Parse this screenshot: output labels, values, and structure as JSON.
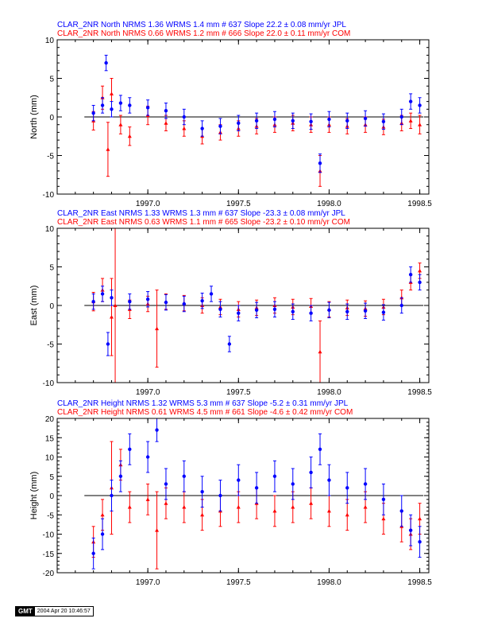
{
  "chart_data": [
    {
      "type": "scatter",
      "panel": "north",
      "title_lines": [
        {
          "text": "CLAR_2NR North NRMS 1.36 WRMS  1.4 mm # 637 Slope   22.2 ±  0.08 mm/yr JPL",
          "color": "#0000ff"
        },
        {
          "text": "CLAR_2NR North NRMS 0.66 WRMS  1.2 mm # 666 Slope   22.0 ±  0.11 mm/yr COM",
          "color": "#ff0000"
        }
      ],
      "ylabel": "North (mm)",
      "xlim": [
        1996.5,
        1998.55
      ],
      "ylim": [
        -10,
        10
      ],
      "xticks": [
        1997.0,
        1997.5,
        1998.0,
        1998.5
      ],
      "xtick_labels": [
        "1997.0",
        "1997.5",
        "1998.0",
        "1998.5"
      ],
      "yticks": [
        -10,
        -5,
        0,
        5,
        10
      ],
      "ytick_labels": [
        "-10",
        "-5",
        "0",
        "5",
        "10"
      ],
      "zero_line": true,
      "series": [
        {
          "color": "#ff0000",
          "points": [
            [
              1996.7,
              -0.5,
              1.2
            ],
            [
              1996.75,
              2.5,
              1.5
            ],
            [
              1996.78,
              -4.2,
              3.5
            ],
            [
              1996.8,
              3.0,
              2.0
            ],
            [
              1996.85,
              -1.0,
              1.2
            ],
            [
              1996.9,
              -2.5,
              1.2
            ],
            [
              1997.0,
              0.2,
              1.2
            ],
            [
              1997.1,
              -0.8,
              1.0
            ],
            [
              1997.2,
              -1.5,
              1.0
            ],
            [
              1997.3,
              -2.5,
              1.0
            ],
            [
              1997.4,
              -2.0,
              1.0
            ],
            [
              1997.5,
              -1.5,
              1.0
            ],
            [
              1997.6,
              -1.2,
              1.0
            ],
            [
              1997.7,
              -1.0,
              1.0
            ],
            [
              1997.8,
              -0.8,
              1.0
            ],
            [
              1997.9,
              -1.0,
              1.0
            ],
            [
              1997.95,
              -7.0,
              2.0
            ],
            [
              1998.0,
              -1.0,
              1.0
            ],
            [
              1998.1,
              -1.2,
              1.0
            ],
            [
              1998.2,
              -1.0,
              1.0
            ],
            [
              1998.3,
              -1.3,
              1.0
            ],
            [
              1998.4,
              -0.8,
              1.0
            ],
            [
              1998.45,
              -0.5,
              1.0
            ],
            [
              1998.5,
              -1.0,
              1.2
            ]
          ]
        },
        {
          "color": "#0000ff",
          "points": [
            [
              1996.7,
              0.5,
              1.0
            ],
            [
              1996.75,
              1.5,
              1.0
            ],
            [
              1996.77,
              7.0,
              1.0
            ],
            [
              1996.8,
              1.0,
              1.0
            ],
            [
              1996.85,
              1.8,
              1.0
            ],
            [
              1996.9,
              1.5,
              1.0
            ],
            [
              1997.0,
              1.2,
              1.0
            ],
            [
              1997.1,
              0.8,
              1.0
            ],
            [
              1997.2,
              0.0,
              1.0
            ],
            [
              1997.3,
              -1.5,
              1.0
            ],
            [
              1997.4,
              -1.2,
              1.0
            ],
            [
              1997.5,
              -0.8,
              1.0
            ],
            [
              1997.6,
              -0.5,
              1.0
            ],
            [
              1997.7,
              -0.3,
              1.0
            ],
            [
              1997.8,
              -0.5,
              1.0
            ],
            [
              1997.9,
              -0.6,
              1.0
            ],
            [
              1997.95,
              -6.0,
              1.2
            ],
            [
              1998.0,
              -0.3,
              1.0
            ],
            [
              1998.1,
              -0.5,
              1.0
            ],
            [
              1998.2,
              -0.2,
              1.0
            ],
            [
              1998.3,
              -0.6,
              1.0
            ],
            [
              1998.4,
              0.0,
              1.0
            ],
            [
              1998.45,
              2.0,
              1.0
            ],
            [
              1998.5,
              1.5,
              1.0
            ]
          ]
        }
      ]
    },
    {
      "type": "scatter",
      "panel": "east",
      "title_lines": [
        {
          "text": "CLAR_2NR East NRMS 1.33 WRMS  1.3 mm # 637 Slope  -23.3 ±  0.08 mm/yr JPL",
          "color": "#0000ff"
        },
        {
          "text": "CLAR_2NR East NRMS 0.63 WRMS  1.1 mm # 665 Slope  -23.2 ±  0.10 mm/yr COM",
          "color": "#ff0000"
        }
      ],
      "ylabel": "East (mm)",
      "xlim": [
        1996.5,
        1998.55
      ],
      "ylim": [
        -10,
        10
      ],
      "xticks": [
        1997.0,
        1997.5,
        1998.0,
        1998.5
      ],
      "xtick_labels": [
        "1997.0",
        "1997.5",
        "1998.0",
        "1998.5"
      ],
      "yticks": [
        -10,
        -5,
        0,
        5,
        10
      ],
      "ytick_labels": [
        "-10",
        "-5",
        "0",
        "5",
        "10"
      ],
      "zero_line": true,
      "series": [
        {
          "color": "#ff0000",
          "points": [
            [
              1996.7,
              0.5,
              1.2
            ],
            [
              1996.75,
              2.0,
              1.5
            ],
            [
              1996.8,
              -1.5,
              5.0
            ],
            [
              1996.82,
              0.0,
              10.0
            ],
            [
              1996.9,
              -0.5,
              1.2
            ],
            [
              1997.0,
              0.2,
              1.0
            ],
            [
              1997.05,
              -3.0,
              5.0
            ],
            [
              1997.1,
              0.5,
              1.0
            ],
            [
              1997.2,
              0.3,
              1.0
            ],
            [
              1997.3,
              0.0,
              1.0
            ],
            [
              1997.4,
              -0.2,
              1.0
            ],
            [
              1997.5,
              -0.5,
              1.0
            ],
            [
              1997.6,
              -0.3,
              1.0
            ],
            [
              1997.7,
              0.0,
              1.0
            ],
            [
              1997.8,
              -0.2,
              1.0
            ],
            [
              1997.9,
              -0.1,
              1.0
            ],
            [
              1997.95,
              -6.0,
              4.0
            ],
            [
              1998.0,
              -0.5,
              1.0
            ],
            [
              1998.1,
              -0.3,
              1.0
            ],
            [
              1998.2,
              -0.4,
              1.0
            ],
            [
              1998.3,
              -0.2,
              1.0
            ],
            [
              1998.4,
              1.0,
              1.0
            ],
            [
              1998.45,
              3.0,
              1.0
            ],
            [
              1998.5,
              4.5,
              1.0
            ]
          ]
        },
        {
          "color": "#0000ff",
          "points": [
            [
              1996.7,
              0.5,
              1.0
            ],
            [
              1996.75,
              1.5,
              1.0
            ],
            [
              1996.78,
              -5.0,
              1.5
            ],
            [
              1996.8,
              1.0,
              1.0
            ],
            [
              1996.9,
              0.5,
              1.0
            ],
            [
              1997.0,
              0.8,
              1.0
            ],
            [
              1997.1,
              0.4,
              1.0
            ],
            [
              1997.2,
              0.2,
              1.0
            ],
            [
              1997.3,
              0.6,
              1.0
            ],
            [
              1997.35,
              1.5,
              1.0
            ],
            [
              1997.4,
              -0.5,
              1.0
            ],
            [
              1997.45,
              -5.0,
              1.0
            ],
            [
              1997.5,
              -1.0,
              1.0
            ],
            [
              1997.6,
              -0.6,
              1.0
            ],
            [
              1997.7,
              -0.5,
              1.0
            ],
            [
              1997.8,
              -0.8,
              1.0
            ],
            [
              1997.9,
              -1.0,
              1.0
            ],
            [
              1998.0,
              -0.6,
              1.0
            ],
            [
              1998.1,
              -0.8,
              1.0
            ],
            [
              1998.2,
              -0.7,
              1.0
            ],
            [
              1998.3,
              -0.9,
              1.0
            ],
            [
              1998.4,
              0.0,
              1.0
            ],
            [
              1998.45,
              4.0,
              1.0
            ],
            [
              1998.5,
              3.0,
              1.0
            ]
          ]
        }
      ]
    },
    {
      "type": "scatter",
      "panel": "height",
      "title_lines": [
        {
          "text": "CLAR_2NR Height NRMS 1.32 WRMS  5.3 mm # 637 Slope   -5.2 ±  0.31 mm/yr JPL",
          "color": "#0000ff"
        },
        {
          "text": "CLAR_2NR Height NRMS 0.61 WRMS  4.5 mm # 661 Slope   -4.6 ±  0.42 mm/yr COM",
          "color": "#ff0000"
        }
      ],
      "ylabel": "Height (mm)",
      "xlim": [
        1996.5,
        1998.55
      ],
      "ylim": [
        -20,
        20
      ],
      "xticks": [
        1997.0,
        1997.5,
        1998.0,
        1998.5
      ],
      "xtick_labels": [
        "1997.0",
        "1997.5",
        "1998.0",
        "1998.5"
      ],
      "yticks": [
        -20,
        -15,
        -10,
        -5,
        0,
        5,
        10,
        15,
        20
      ],
      "ytick_labels": [
        "-20",
        "-15",
        "-10",
        "-5",
        "0",
        "5",
        "10",
        "15",
        "20"
      ],
      "zero_line": true,
      "series": [
        {
          "color": "#ff0000",
          "points": [
            [
              1996.7,
              -12.0,
              4.0
            ],
            [
              1996.75,
              -5.0,
              4.0
            ],
            [
              1996.8,
              2.0,
              12.0
            ],
            [
              1996.85,
              8.0,
              4.0
            ],
            [
              1996.9,
              -3.0,
              4.0
            ],
            [
              1997.0,
              -1.0,
              4.0
            ],
            [
              1997.05,
              -9.0,
              10.0
            ],
            [
              1997.1,
              -2.0,
              4.0
            ],
            [
              1997.2,
              -3.0,
              4.0
            ],
            [
              1997.3,
              -5.0,
              4.0
            ],
            [
              1997.4,
              -4.0,
              4.0
            ],
            [
              1997.5,
              -3.0,
              4.0
            ],
            [
              1997.6,
              -2.0,
              4.0
            ],
            [
              1997.7,
              -4.0,
              4.0
            ],
            [
              1997.8,
              -3.0,
              4.0
            ],
            [
              1997.9,
              -2.0,
              4.0
            ],
            [
              1998.0,
              -4.0,
              4.0
            ],
            [
              1998.1,
              -5.0,
              4.0
            ],
            [
              1998.2,
              -3.0,
              4.0
            ],
            [
              1998.3,
              -6.0,
              4.0
            ],
            [
              1998.4,
              -8.0,
              4.0
            ],
            [
              1998.45,
              -10.0,
              4.0
            ],
            [
              1998.5,
              -6.0,
              4.0
            ]
          ]
        },
        {
          "color": "#0000ff",
          "points": [
            [
              1996.7,
              -15.0,
              4.0
            ],
            [
              1996.75,
              -10.0,
              4.0
            ],
            [
              1996.8,
              0.0,
              4.0
            ],
            [
              1996.85,
              5.0,
              4.0
            ],
            [
              1996.9,
              12.0,
              4.0
            ],
            [
              1997.0,
              10.0,
              4.0
            ],
            [
              1997.05,
              17.0,
              3.0
            ],
            [
              1997.1,
              3.0,
              4.0
            ],
            [
              1997.2,
              5.0,
              4.0
            ],
            [
              1997.3,
              1.0,
              4.0
            ],
            [
              1997.4,
              0.0,
              4.0
            ],
            [
              1997.5,
              4.0,
              4.0
            ],
            [
              1997.6,
              2.0,
              4.0
            ],
            [
              1997.7,
              5.0,
              4.0
            ],
            [
              1997.8,
              3.0,
              4.0
            ],
            [
              1997.9,
              6.0,
              4.0
            ],
            [
              1997.95,
              12.0,
              4.0
            ],
            [
              1998.0,
              4.0,
              4.0
            ],
            [
              1998.1,
              2.0,
              4.0
            ],
            [
              1998.2,
              3.0,
              4.0
            ],
            [
              1998.3,
              -1.0,
              4.0
            ],
            [
              1998.4,
              -4.0,
              4.0
            ],
            [
              1998.45,
              -9.0,
              4.0
            ],
            [
              1998.5,
              -12.0,
              4.0
            ]
          ]
        }
      ]
    }
  ],
  "footer": {
    "logo_text": "GMT",
    "timestamp": "2004 Apr 20 10:46:57"
  }
}
